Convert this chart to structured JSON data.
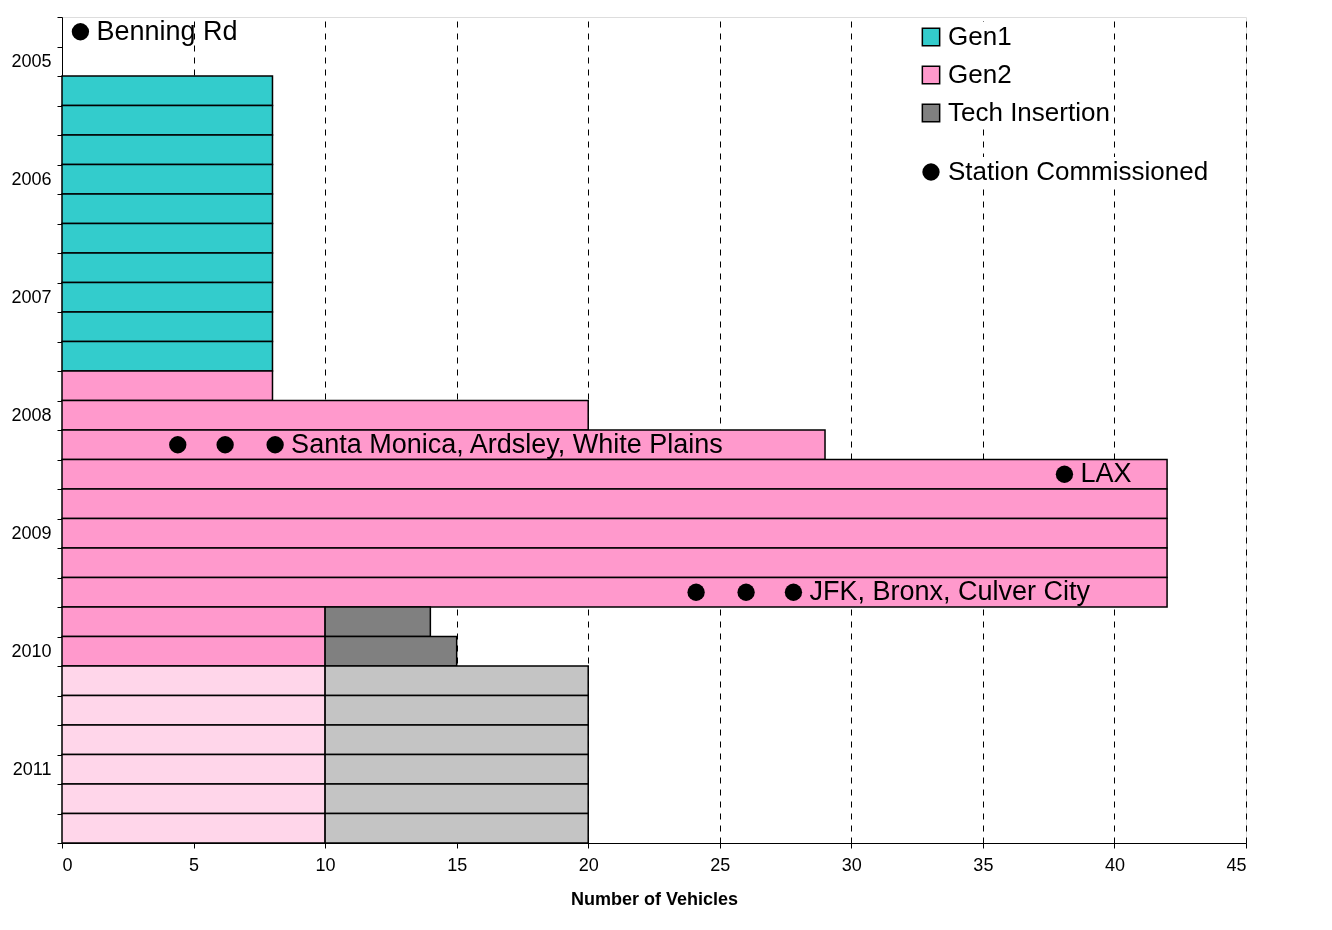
{
  "chart_data": {
    "type": "bar",
    "orientation": "horizontal",
    "stacked": true,
    "xlabel": "Number of Vehicles",
    "categories": [
      null,
      "2005",
      null,
      null,
      null,
      "2006",
      null,
      null,
      null,
      "2007",
      null,
      null,
      null,
      "2008",
      null,
      null,
      null,
      "2009",
      null,
      null,
      null,
      "2010",
      null,
      null,
      null,
      "2011",
      null,
      null
    ],
    "xlim": [
      0,
      45
    ],
    "xticks": [
      0,
      5,
      10,
      15,
      20,
      25,
      30,
      35,
      40,
      45
    ],
    "grid": "x",
    "legend": "top right",
    "marker": "circle",
    "series": [
      {
        "name": "Gen1",
        "color": "#33cccc",
        "values": [
          null,
          null,
          8,
          8,
          8,
          8,
          8,
          8,
          8,
          8,
          8,
          8,
          null,
          null,
          null,
          null,
          null,
          null,
          null,
          null,
          null,
          null,
          null,
          null,
          null,
          null,
          null,
          null
        ]
      },
      {
        "name": "Gen2",
        "color": "#ff99cc",
        "values": [
          null,
          null,
          null,
          null,
          null,
          null,
          null,
          null,
          null,
          null,
          null,
          null,
          8,
          20,
          29,
          42,
          42,
          42,
          42,
          42,
          10,
          10,
          null,
          null,
          null,
          null,
          null,
          null
        ]
      },
      {
        "name": "Tech Insertion",
        "color": "#808080",
        "values": [
          null,
          null,
          null,
          null,
          null,
          null,
          null,
          null,
          null,
          null,
          null,
          null,
          null,
          null,
          null,
          null,
          null,
          null,
          null,
          null,
          4,
          5,
          null,
          null,
          null,
          null,
          null,
          null
        ]
      },
      {
        "color": "#ffd6ea",
        "values": [
          null,
          null,
          null,
          null,
          null,
          null,
          null,
          null,
          null,
          null,
          null,
          null,
          null,
          null,
          null,
          null,
          null,
          null,
          null,
          null,
          null,
          null,
          10,
          10,
          10,
          10,
          10,
          10
        ]
      },
      {
        "color": "#c4c4c4",
        "values": [
          null,
          null,
          null,
          null,
          null,
          null,
          null,
          null,
          null,
          null,
          null,
          null,
          null,
          null,
          null,
          null,
          null,
          null,
          null,
          null,
          null,
          null,
          10,
          10,
          10,
          10,
          10,
          10
        ]
      },
      {
        "type": "scatter",
        "name": "Station Commissioned",
        "color": "#000000",
        "values": [
          0.7,
          null,
          null,
          null,
          null,
          null,
          null,
          null,
          null,
          null,
          null,
          null,
          null,
          null,
          4.4,
          38.1,
          null,
          null,
          null,
          24.1,
          null,
          null,
          null,
          null,
          null,
          null,
          null,
          null
        ],
        "value_labels": [
          "Benning Rd",
          null,
          null,
          null,
          null,
          null,
          null,
          null,
          null,
          null,
          null,
          null,
          null,
          null,
          null,
          "LAX",
          null,
          null,
          null,
          null,
          null,
          null,
          null,
          null,
          null,
          null,
          null,
          null
        ]
      },
      {
        "type": "scatter",
        "color": "#000000",
        "values": [
          null,
          null,
          null,
          null,
          null,
          null,
          null,
          null,
          null,
          null,
          null,
          null,
          null,
          null,
          6.2,
          null,
          null,
          null,
          null,
          26.0,
          null,
          null,
          null,
          null,
          null,
          null,
          null,
          null
        ]
      },
      {
        "type": "scatter",
        "color": "#000000",
        "values": [
          null,
          null,
          null,
          null,
          null,
          null,
          null,
          null,
          null,
          null,
          null,
          null,
          null,
          null,
          8.1,
          null,
          null,
          null,
          null,
          27.8,
          null,
          null,
          null,
          null,
          null,
          null,
          null,
          null
        ],
        "value_labels": [
          null,
          null,
          null,
          null,
          null,
          null,
          null,
          null,
          null,
          null,
          null,
          null,
          null,
          null,
          "Santa Monica, Ardsley, White Plains",
          null,
          null,
          null,
          null,
          "JFK, Bronx, Culver City",
          null,
          null,
          null,
          null,
          null,
          null,
          null,
          null
        ]
      }
    ]
  }
}
